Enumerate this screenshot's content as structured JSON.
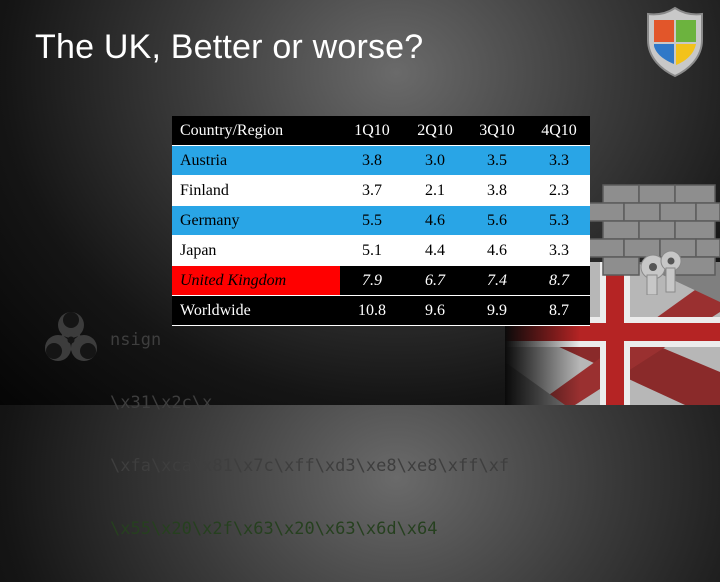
{
  "slide": {
    "title": "The UK, Better or worse?"
  },
  "background": {
    "hex_lines": [
      "nsign",
      "\\x31\\x2c\\x",
      "\\xfa\\xca\\x81\\x7c\\xff\\xd3\\xe8\\xe8\\xff\\xf",
      "\\x55\\x20\\x2f\\x63\\x20\\x63\\x6d\\x64"
    ],
    "icons": [
      "biohazard-icon",
      "union-jack-flag",
      "brick-wall-keys",
      "shield-icon"
    ]
  },
  "table": {
    "headers": [
      "Country/Region",
      "1Q10",
      "2Q10",
      "3Q10",
      "4Q10"
    ],
    "rows": [
      {
        "country": "Austria",
        "values": [
          "3.8",
          "3.0",
          "3.5",
          "3.3"
        ],
        "style": "blue"
      },
      {
        "country": "Finland",
        "values": [
          "3.7",
          "2.1",
          "3.8",
          "2.3"
        ],
        "style": "white"
      },
      {
        "country": "Germany",
        "values": [
          "5.5",
          "4.6",
          "5.6",
          "5.3"
        ],
        "style": "blue"
      },
      {
        "country": "Japan",
        "values": [
          "5.1",
          "4.4",
          "4.6",
          "3.3"
        ],
        "style": "white"
      },
      {
        "country": "United Kingdom",
        "values": [
          "7.9",
          "6.7",
          "7.4",
          "8.7"
        ],
        "style": "red"
      },
      {
        "country": "Worldwide",
        "values": [
          "10.8",
          "9.6",
          "9.9",
          "8.7"
        ],
        "style": "black"
      }
    ]
  },
  "colors": {
    "highlight_blue": "#29a5e6",
    "highlight_red": "#ff0000"
  }
}
